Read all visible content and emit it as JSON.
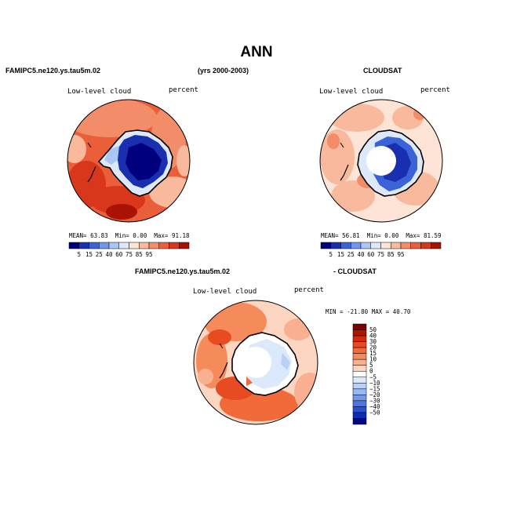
{
  "title": "ANN",
  "header": {
    "left": "FAMIPC5.ne120.ys.tau5m.02",
    "center": "(yrs 2000-2003)",
    "right": "CLOUDSAT"
  },
  "panels": [
    {
      "variable": "Low-level cloud",
      "units": "percent",
      "stats": {
        "mean_label": "MEAN=",
        "mean": "63.83",
        "min_label": "Min=",
        "min": "0.00",
        "max_label": "Max=",
        "max": "91.18"
      },
      "colorbar_labels": [
        "5",
        "15",
        "25",
        "40",
        "60",
        "75",
        "85",
        "95"
      ]
    },
    {
      "variable": "Low-level cloud",
      "units": "percent",
      "stats": {
        "mean_label": "MEAN=",
        "mean": "56.81",
        "min_label": "Min=",
        "min": "0.00",
        "max_label": "Max=",
        "max": "81.59"
      },
      "colorbar_labels": [
        "5",
        "15",
        "25",
        "40",
        "60",
        "75",
        "85",
        "95"
      ]
    },
    {
      "title_left": "FAMIPC5.ne120.ys.tau5m.02",
      "title_right": "- CLOUDSAT",
      "variable": "Low-level cloud",
      "units": "percent",
      "minmax": "MIN = -21.80  MAX =  40.70",
      "colorbar_labels": [
        "50",
        "40",
        "30",
        "20",
        "15",
        "10",
        "5",
        "0",
        "−5",
        "−10",
        "−15",
        "−20",
        "−30",
        "−40",
        "−50"
      ]
    }
  ],
  "colors": {
    "abs_scale": [
      "#00007f",
      "#1a2fb0",
      "#3a63d8",
      "#6f98ee",
      "#a9c6f5",
      "#dde9fb",
      "#fde4d6",
      "#f9b99c",
      "#f38c68",
      "#ea5f3a",
      "#d9371c",
      "#a81306"
    ],
    "diff_scale": [
      "#7f0000",
      "#b01200",
      "#d6280e",
      "#e84a22",
      "#f06a3a",
      "#f58a5a",
      "#f9b090",
      "#fcd6c0",
      "#ffffff",
      "#dce8fb",
      "#b9d1f7",
      "#97b8f1",
      "#7298ea",
      "#4e76e0",
      "#2a50cf",
      "#0d2cb4",
      "#00087f"
    ]
  }
}
